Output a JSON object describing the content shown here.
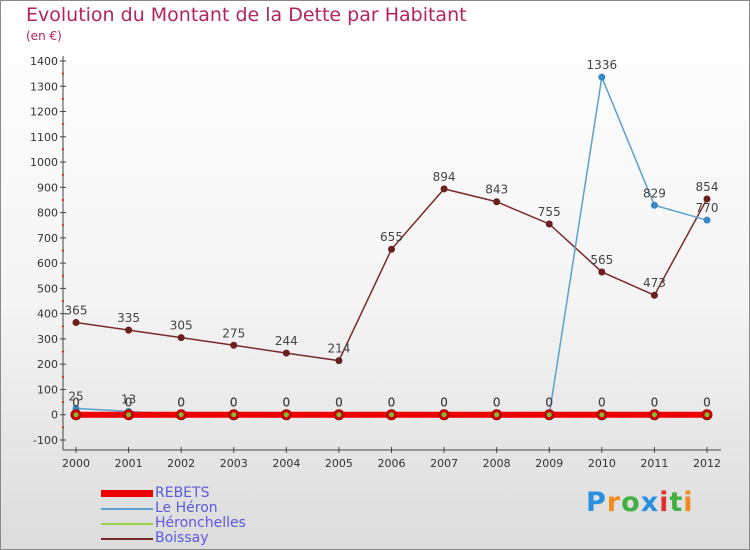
{
  "title": "Evolution du Montant de la Dette par Habitant",
  "subtitle": "(en €)",
  "logo": {
    "text": "Proxiti",
    "colors": [
      "#2a8fe0",
      "#f08a1c",
      "#40b040",
      "#2a8fe0",
      "#e03030",
      "#40b040",
      "#f08a1c"
    ]
  },
  "chart_data": {
    "type": "line",
    "title": "Evolution du Montant de la Dette par Habitant",
    "unit": "(en €)",
    "xlabel": "",
    "ylabel": "",
    "categories": [
      "2000",
      "2001",
      "2002",
      "2003",
      "2004",
      "2005",
      "2006",
      "2007",
      "2008",
      "2009",
      "2010",
      "2011",
      "2012"
    ],
    "ylim": [
      -100,
      1400
    ],
    "yticks": [
      -100,
      0,
      100,
      200,
      300,
      400,
      500,
      600,
      700,
      800,
      900,
      1000,
      1100,
      1200,
      1300,
      1400
    ],
    "grid": false,
    "legend": "bottom-left",
    "series": [
      {
        "name": "Boissay",
        "color": "#7a2a2a",
        "marker": "#6a1e1e",
        "width": 1.5,
        "values": [
          365,
          335,
          305,
          275,
          244,
          214,
          655,
          894,
          843,
          755,
          565,
          473,
          854
        ],
        "labels": [
          "365",
          "335",
          "305",
          "275",
          "244",
          "214",
          "655",
          "894",
          "843",
          "755",
          "565",
          "473",
          "854"
        ]
      },
      {
        "name": "Le Héron",
        "color": "#5ba0d0",
        "marker": "#3a86c2",
        "width": 1.5,
        "values": [
          25,
          13,
          0,
          0,
          0,
          0,
          0,
          0,
          0,
          0,
          1336,
          829,
          770
        ],
        "labels": [
          "25",
          "13",
          "0",
          "0",
          "0",
          "0",
          "0",
          "0",
          "0",
          "0",
          "1336",
          "829",
          "770"
        ]
      },
      {
        "name": "Héronchelles",
        "color": "#9ad24a",
        "marker": "#7bc030",
        "width": 2,
        "values": [
          0,
          0,
          0,
          0,
          0,
          0,
          0,
          0,
          0,
          0,
          0,
          0,
          0
        ],
        "labels": [
          "0",
          "0",
          "0",
          "0",
          "0",
          "0",
          "0",
          "0",
          "0",
          "0",
          "0",
          "0",
          "0"
        ]
      },
      {
        "name": "REBETS",
        "color": "#ee0000",
        "marker": "#d40000",
        "width": 6,
        "values": [
          0,
          0,
          0,
          0,
          0,
          0,
          0,
          0,
          0,
          0,
          0,
          0,
          0
        ],
        "labels": [
          "0",
          "0",
          "0",
          "0",
          "0",
          "0",
          "0",
          "0",
          "0",
          "0",
          "0",
          "0",
          "0"
        ]
      }
    ],
    "legend_order": [
      "REBETS",
      "Le Héron",
      "Héronchelles",
      "Boissay"
    ]
  }
}
